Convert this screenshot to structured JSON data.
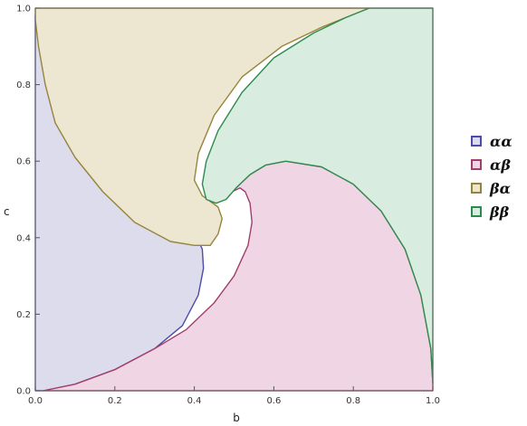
{
  "chart_data": {
    "type": "area",
    "title": "",
    "xlabel": "b",
    "ylabel": "c",
    "xlim": [
      0,
      1
    ],
    "ylim": [
      0,
      1
    ],
    "xticks": [
      "0.0",
      "0.2",
      "0.4",
      "0.6",
      "0.8",
      "1.0"
    ],
    "yticks": [
      "0.0",
      "0.2",
      "0.4",
      "0.6",
      "0.8",
      "1.0"
    ],
    "grid": false,
    "legend_position": "right",
    "series": [
      {
        "name": "αα",
        "fill": "#dcdced",
        "stroke": "#4b4ba8",
        "points": [
          [
            0,
            0
          ],
          [
            0.02,
            0
          ],
          [
            0.1,
            0.017
          ],
          [
            0.2,
            0.055
          ],
          [
            0.3,
            0.11
          ],
          [
            0.37,
            0.17
          ],
          [
            0.41,
            0.25
          ],
          [
            0.423,
            0.32
          ],
          [
            0.42,
            0.37
          ],
          [
            0.4,
            0.415
          ],
          [
            0.372,
            0.445
          ],
          [
            0.33,
            0.45
          ],
          [
            0.28,
            0.432
          ],
          [
            0.2,
            0.5
          ],
          [
            0.15,
            0.58
          ],
          [
            0.08,
            0.68
          ],
          [
            0.04,
            0.77
          ],
          [
            0.015,
            0.87
          ],
          [
            0.003,
            0.95
          ],
          [
            0,
            0.98
          ]
        ]
      },
      {
        "name": "αβ",
        "fill": "#f0d6e4",
        "stroke": "#a23e6c",
        "points": [
          [
            0.02,
            0
          ],
          [
            1,
            0
          ],
          [
            1,
            0.02
          ],
          [
            0.995,
            0.11
          ],
          [
            0.97,
            0.25
          ],
          [
            0.93,
            0.37
          ],
          [
            0.87,
            0.47
          ],
          [
            0.8,
            0.54
          ],
          [
            0.72,
            0.585
          ],
          [
            0.63,
            0.6
          ],
          [
            0.58,
            0.59
          ],
          [
            0.54,
            0.565
          ],
          [
            0.505,
            0.53
          ],
          [
            0.495,
            0.52
          ],
          [
            0.505,
            0.525
          ],
          [
            0.515,
            0.53
          ],
          [
            0.528,
            0.52
          ],
          [
            0.54,
            0.49
          ],
          [
            0.545,
            0.44
          ],
          [
            0.535,
            0.38
          ],
          [
            0.5,
            0.3
          ],
          [
            0.45,
            0.23
          ],
          [
            0.38,
            0.16
          ],
          [
            0.3,
            0.11
          ],
          [
            0.2,
            0.055
          ],
          [
            0.1,
            0.017
          ]
        ]
      },
      {
        "name": "βα",
        "fill": "#ede7d2",
        "stroke": "#97843b",
        "points": [
          [
            0,
            1
          ],
          [
            0.84,
            1
          ],
          [
            0.72,
            0.95
          ],
          [
            0.62,
            0.9
          ],
          [
            0.52,
            0.82
          ],
          [
            0.45,
            0.72
          ],
          [
            0.41,
            0.62
          ],
          [
            0.4,
            0.55
          ],
          [
            0.42,
            0.51
          ],
          [
            0.46,
            0.48
          ],
          [
            0.47,
            0.45
          ],
          [
            0.46,
            0.41
          ],
          [
            0.44,
            0.38
          ],
          [
            0.4,
            0.38
          ],
          [
            0.34,
            0.39
          ],
          [
            0.25,
            0.44
          ],
          [
            0.17,
            0.52
          ],
          [
            0.1,
            0.61
          ],
          [
            0.05,
            0.7
          ],
          [
            0.025,
            0.8
          ],
          [
            0.008,
            0.9
          ],
          [
            0,
            0.97
          ]
        ]
      },
      {
        "name": "ββ",
        "fill": "#d8ecdf",
        "stroke": "#2f8a4e",
        "points": [
          [
            0.84,
            1
          ],
          [
            1,
            1
          ],
          [
            1,
            0.02
          ],
          [
            0.995,
            0.11
          ],
          [
            0.97,
            0.25
          ],
          [
            0.93,
            0.37
          ],
          [
            0.87,
            0.47
          ],
          [
            0.8,
            0.54
          ],
          [
            0.72,
            0.585
          ],
          [
            0.63,
            0.6
          ],
          [
            0.58,
            0.59
          ],
          [
            0.54,
            0.565
          ],
          [
            0.505,
            0.53
          ],
          [
            0.48,
            0.5
          ],
          [
            0.455,
            0.49
          ],
          [
            0.43,
            0.5
          ],
          [
            0.42,
            0.54
          ],
          [
            0.43,
            0.6
          ],
          [
            0.46,
            0.68
          ],
          [
            0.52,
            0.78
          ],
          [
            0.6,
            0.87
          ],
          [
            0.7,
            0.935
          ],
          [
            0.78,
            0.975
          ]
        ]
      }
    ]
  }
}
